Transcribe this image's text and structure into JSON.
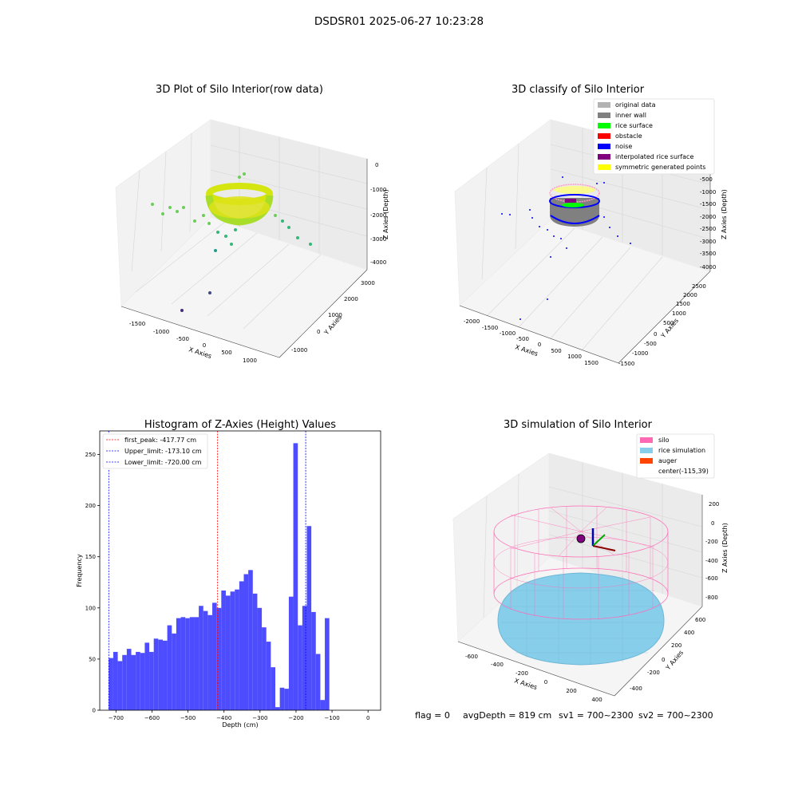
{
  "figure": {
    "suptitle": "DSDSR01 2025-06-27 10:23:28",
    "footer": {
      "flag": "flag = 0",
      "avg_depth": "avgDepth = 819 cm",
      "sv1": "sv1 = 700~2300",
      "sv2": "sv2 = 700~2300"
    }
  },
  "colors": {
    "hist_bar": "#4d4dff",
    "first_peak_line": "#ff0000",
    "limit_line": "#0000ff",
    "silo": "#ff69b4",
    "rice_simulation": "#87ceeb",
    "auger": "#ff4500",
    "original_data": "#b3b3b3",
    "inner_wall": "#808080",
    "rice_surface": "#00ff00",
    "obstacle": "#ff0000",
    "noise": "#0000ff",
    "interpolated": "#800080",
    "symmetric": "#ffff00"
  },
  "chart_data": [
    {
      "id": "raw",
      "type": "scatter",
      "title": "3D Plot of Silo Interior(row data)",
      "xlabel": "X Axies",
      "ylabel": "Y Axies",
      "zlabel": "Z Axies (Depth)",
      "x_ticks": [
        "-1500",
        "-1000",
        "-500",
        "0",
        "500",
        "1000"
      ],
      "y_ticks": [
        "-1000",
        "0",
        "1000",
        "2000",
        "3000"
      ],
      "z_ticks": [
        "0",
        "-1000",
        "-2000",
        "-3000",
        "-4000"
      ],
      "grid": true
    },
    {
      "id": "classify",
      "type": "scatter",
      "title": "3D classify of Silo Interior",
      "xlabel": "X Axies",
      "ylabel": "Y Axies",
      "zlabel": "Z Axies (Depth)",
      "x_ticks": [
        "-2000",
        "-1500",
        "-1000",
        "-500",
        "0",
        "500",
        "1000",
        "1500"
      ],
      "y_ticks": [
        "-1500",
        "-1000",
        "-500",
        "0",
        "500",
        "1000",
        "1500",
        "2000",
        "2500"
      ],
      "z_ticks": [
        "-500",
        "-1000",
        "-1500",
        "-2000",
        "-2500",
        "-3000",
        "-3500",
        "-4000"
      ],
      "legend": [
        {
          "label": "original data",
          "color": "#b3b3b3"
        },
        {
          "label": "inner wall",
          "color": "#808080"
        },
        {
          "label": "rice surface",
          "color": "#00ff00"
        },
        {
          "label": "obstacle",
          "color": "#ff0000"
        },
        {
          "label": "noise",
          "color": "#0000ff"
        },
        {
          "label": "interpolated rice surface",
          "color": "#800080"
        },
        {
          "label": "symmetric generated points",
          "color": "#ffff00"
        }
      ],
      "legend_position": "top-right",
      "grid": true
    },
    {
      "id": "hist",
      "type": "bar",
      "title": "Histogram of Z-Axies (Height) Values",
      "xlabel": "Depth (cm)",
      "ylabel": "Frequency",
      "xlim": [
        -745,
        35
      ],
      "ylim": [
        0,
        273
      ],
      "x_ticks": [
        -700,
        -600,
        -500,
        -400,
        -300,
        -200,
        -100,
        0
      ],
      "y_ticks": [
        0,
        50,
        100,
        150,
        200,
        250
      ],
      "bin_start": -720,
      "bin_width": 12.5,
      "values": [
        51,
        57,
        48,
        54,
        60,
        54,
        57,
        56,
        66,
        57,
        70,
        69,
        68,
        83,
        75,
        90,
        91,
        90,
        91,
        91,
        102,
        97,
        93,
        105,
        100,
        117,
        112,
        116,
        118,
        126,
        133,
        137,
        114,
        100,
        81,
        67,
        42,
        3,
        22,
        21,
        111,
        261,
        83,
        102,
        180,
        96,
        55,
        10,
        90
      ],
      "vlines": [
        {
          "label": "first_peak: -417.77 cm",
          "x": -417.77,
          "color": "#ff0000"
        },
        {
          "label": "Upper_limit: -173.10 cm",
          "x": -173.1,
          "color": "#0000ff"
        },
        {
          "label": "Lower_limit: -720.00 cm",
          "x": -720.0,
          "color": "#0000ff"
        }
      ],
      "legend_position": "top-left"
    },
    {
      "id": "sim",
      "type": "scatter",
      "title": "3D simulation of Silo Interior",
      "xlabel": "X Axies",
      "ylabel": "Y Axies",
      "zlabel": "Z Axies (Depth)",
      "x_ticks": [
        "-600",
        "-400",
        "-200",
        "0",
        "200",
        "400"
      ],
      "y_ticks": [
        "-400",
        "-200",
        "0",
        "200",
        "400",
        "600"
      ],
      "z_ticks": [
        "200",
        "0",
        "-200",
        "-400",
        "-600",
        "-800"
      ],
      "legend": [
        {
          "label": "silo",
          "color": "#ff69b4"
        },
        {
          "label": "rice simulation",
          "color": "#87ceeb"
        },
        {
          "label": "auger",
          "color": "#ff4500"
        },
        {
          "label": "center(-115,39)",
          "color": ""
        }
      ],
      "legend_position": "top-right",
      "grid": true
    }
  ]
}
